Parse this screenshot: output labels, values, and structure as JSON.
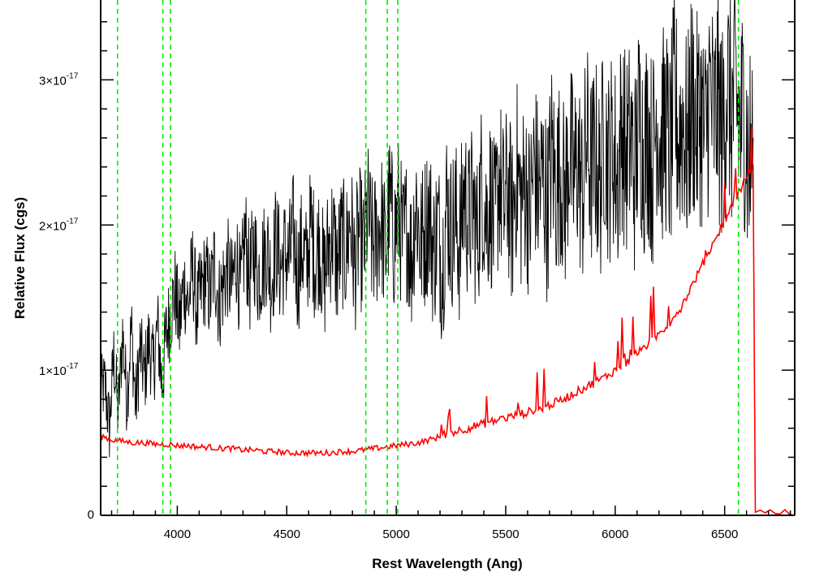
{
  "chart_data": {
    "type": "line",
    "title": "",
    "xlabel": "Rest Wavelength (Ang)",
    "ylabel": "Relative Flux (cgs)",
    "xlim": [
      3650,
      6820
    ],
    "ylim": [
      0,
      3.55e-17
    ],
    "x_ticks": [
      {
        "value": 4000,
        "label": "4000"
      },
      {
        "value": 4500,
        "label": "4500"
      },
      {
        "value": 5000,
        "label": "5000"
      },
      {
        "value": 5500,
        "label": "5500"
      },
      {
        "value": 6000,
        "label": "6000"
      },
      {
        "value": 6500,
        "label": "6500"
      }
    ],
    "y_ticks": [
      {
        "value": 0,
        "mant": "0",
        "exp": ""
      },
      {
        "value": 1e-17,
        "mant": "1×10",
        "exp": "-17"
      },
      {
        "value": 2e-17,
        "mant": "2×10",
        "exp": "-17"
      },
      {
        "value": 3e-17,
        "mant": "3×10",
        "exp": "-17"
      }
    ],
    "vertical_lines": [
      3727,
      3934,
      3969,
      4861,
      4959,
      5007,
      6563
    ],
    "series": [
      {
        "color": "#000000",
        "x": [
          3650,
          3670,
          3690,
          3710,
          3730,
          3750,
          3770,
          3790,
          3810,
          3830,
          3850,
          3870,
          3890,
          3910,
          3930,
          3950,
          3970,
          3990,
          4010,
          4030,
          4050,
          4070,
          4090,
          4110,
          4130,
          4150,
          4170,
          4190,
          4210,
          4230,
          4250,
          4270,
          4290,
          4310,
          4330,
          4350,
          4370,
          4390,
          4410,
          4430,
          4450,
          4470,
          4490,
          4510,
          4530,
          4550,
          4570,
          4590,
          4610,
          4630,
          4650,
          4670,
          4690,
          4710,
          4730,
          4750,
          4770,
          4790,
          4810,
          4830,
          4850,
          4870,
          4890,
          4910,
          4930,
          4950,
          4970,
          4990,
          5010,
          5030,
          5050,
          5070,
          5090,
          5110,
          5130,
          5150,
          5170,
          5190,
          5210,
          5230,
          5250,
          5270,
          5290,
          5310,
          5330,
          5350,
          5370,
          5390,
          5410,
          5430,
          5450,
          5470,
          5490,
          5510,
          5530,
          5550,
          5570,
          5590,
          5610,
          5630,
          5650,
          5670,
          5690,
          5710,
          5730,
          5750,
          5770,
          5790,
          5810,
          5830,
          5850,
          5870,
          5890,
          5910,
          5930,
          5950,
          5970,
          5990,
          6010,
          6030,
          6050,
          6070,
          6090,
          6110,
          6130,
          6150,
          6170,
          6190,
          6210,
          6230,
          6250,
          6270,
          6290,
          6310,
          6330,
          6350,
          6370,
          6390,
          6410,
          6430,
          6450,
          6470,
          6490,
          6510,
          6530,
          6550,
          6570,
          6590,
          6610,
          6630
        ],
        "y": [
          0.85,
          0.9,
          0.6,
          1.1,
          0.7,
          1.25,
          0.8,
          1.3,
          0.75,
          1.15,
          0.95,
          1.2,
          1.0,
          1.3,
          0.9,
          1.25,
          1.4,
          1.55,
          1.3,
          1.6,
          1.45,
          1.7,
          1.4,
          1.55,
          1.65,
          1.5,
          1.75,
          1.45,
          1.6,
          1.7,
          1.55,
          1.8,
          1.5,
          1.95,
          1.6,
          1.85,
          1.65,
          1.75,
          1.85,
          1.6,
          1.9,
          1.7,
          1.8,
          1.75,
          1.95,
          1.65,
          1.85,
          1.7,
          2.0,
          1.75,
          1.9,
          1.6,
          1.85,
          1.95,
          1.7,
          1.9,
          1.8,
          2.05,
          1.7,
          1.95,
          1.8,
          2.1,
          1.85,
          1.9,
          2.05,
          1.8,
          2.15,
          1.9,
          2.1,
          1.85,
          2.0,
          1.75,
          2.2,
          1.85,
          1.95,
          2.1,
          1.8,
          2.0,
          1.7,
          2.15,
          1.95,
          2.05,
          1.85,
          2.25,
          2.0,
          2.15,
          1.9,
          2.3,
          2.05,
          2.2,
          1.95,
          2.35,
          2.1,
          2.25,
          2.0,
          2.4,
          2.15,
          2.3,
          2.05,
          2.45,
          2.2,
          2.35,
          2.1,
          2.5,
          2.25,
          2.4,
          2.15,
          2.55,
          2.3,
          2.45,
          2.2,
          2.6,
          2.35,
          2.5,
          2.25,
          2.65,
          2.4,
          2.55,
          2.3,
          2.7,
          2.45,
          2.6,
          2.35,
          2.75,
          2.5,
          2.65,
          2.4,
          2.8,
          2.55,
          2.7,
          2.45,
          2.85,
          2.6,
          2.75,
          2.5,
          2.9,
          2.65,
          2.8,
          2.55,
          2.95,
          2.7,
          2.85,
          2.6,
          3.0,
          2.75,
          2.9,
          2.65,
          2.8,
          2.4,
          2.6
        ],
        "scale": 1e-17
      },
      {
        "color": "#ff0000",
        "x": [
          3650,
          3700,
          3750,
          3800,
          3850,
          3900,
          3950,
          4000,
          4050,
          4100,
          4150,
          4200,
          4250,
          4300,
          4350,
          4400,
          4450,
          4500,
          4550,
          4600,
          4650,
          4700,
          4750,
          4800,
          4850,
          4900,
          4950,
          5000,
          5050,
          5100,
          5150,
          5200,
          5250,
          5300,
          5350,
          5400,
          5450,
          5500,
          5550,
          5600,
          5650,
          5700,
          5750,
          5800,
          5850,
          5900,
          5950,
          6000,
          6050,
          6100,
          6150,
          6200,
          6250,
          6300,
          6350,
          6400,
          6450,
          6500,
          6550,
          6600,
          6630,
          6640,
          6820
        ],
        "y": [
          0.53,
          0.5,
          0.49,
          0.48,
          0.48,
          0.47,
          0.47,
          0.46,
          0.46,
          0.45,
          0.45,
          0.44,
          0.44,
          0.43,
          0.43,
          0.42,
          0.42,
          0.41,
          0.41,
          0.41,
          0.41,
          0.41,
          0.42,
          0.42,
          0.43,
          0.44,
          0.45,
          0.46,
          0.47,
          0.48,
          0.5,
          0.52,
          0.54,
          0.56,
          0.58,
          0.6,
          0.62,
          0.64,
          0.66,
          0.68,
          0.7,
          0.73,
          0.76,
          0.8,
          0.84,
          0.88,
          0.92,
          0.97,
          1.02,
          1.08,
          1.15,
          1.22,
          1.3,
          1.4,
          1.55,
          1.7,
          1.85,
          2.0,
          2.15,
          2.3,
          2.4,
          0.0,
          0.0
        ],
        "scale": 1e-17
      }
    ],
    "grid": false,
    "legend": "none"
  }
}
